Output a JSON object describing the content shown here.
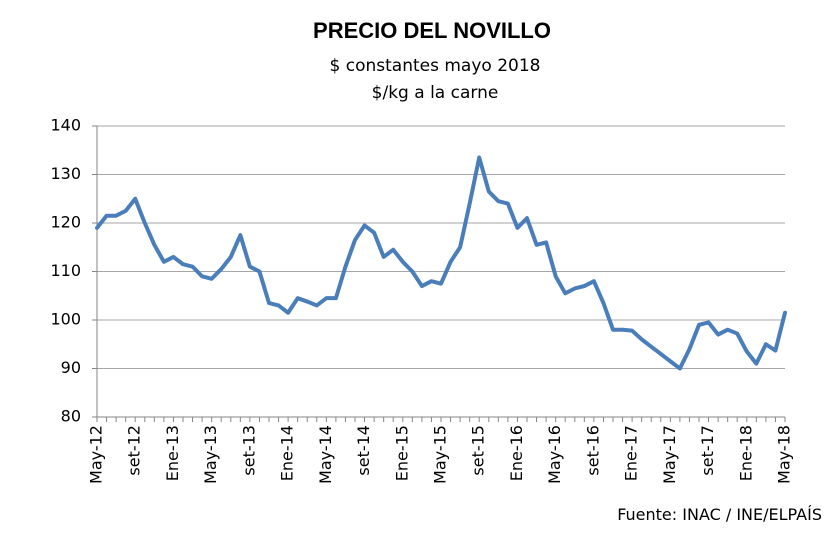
{
  "chart_data": {
    "type": "line",
    "title": "PRECIO DEL NOVILLO",
    "subtitle": "$ constantes mayo 2018",
    "y_axis_label": "$/kg a la carne",
    "source": "Fuente: INAC / INE/ELPAÍS",
    "categories": [
      "May-12",
      null,
      null,
      null,
      "set-12",
      null,
      null,
      null,
      "Ene-13",
      null,
      null,
      null,
      "May-13",
      null,
      null,
      null,
      "set-13",
      null,
      null,
      null,
      "Ene-14",
      null,
      null,
      null,
      "May-14",
      null,
      null,
      null,
      "set-14",
      null,
      null,
      null,
      "Ene-15",
      null,
      null,
      null,
      "May-15",
      null,
      null,
      null,
      "set-15",
      null,
      null,
      null,
      "Ene-16",
      null,
      null,
      null,
      "May-16",
      null,
      null,
      null,
      "set-16",
      null,
      null,
      null,
      "Ene-17",
      null,
      null,
      null,
      "May-17",
      null,
      null,
      null,
      "set-17",
      null,
      null,
      null,
      "Ene-18",
      null,
      null,
      null,
      "May-18"
    ],
    "series": [
      {
        "name": "Precio del novillo",
        "color": "#4a7ebb",
        "values": [
          119,
          121.5,
          121.5,
          122.5,
          125,
          120,
          115.5,
          112,
          113,
          111.5,
          111,
          109,
          108.5,
          110.5,
          113,
          117.5,
          111,
          110,
          103.5,
          103,
          101.5,
          104.5,
          103.8,
          103,
          104.5,
          104.5,
          111,
          116.5,
          119.5,
          118,
          113,
          114.5,
          112,
          110,
          107,
          108,
          107.5,
          112,
          115,
          124,
          133.5,
          126.5,
          124.5,
          124,
          119,
          121,
          115.5,
          116,
          109,
          105.5,
          106.5,
          107,
          108,
          103.5,
          98,
          98,
          97.8,
          96,
          94.5,
          93,
          91.5,
          90,
          94,
          99,
          99.5,
          97,
          98,
          97.2,
          93.5,
          91,
          95,
          93.7,
          101.5
        ]
      }
    ],
    "ylim": [
      80,
      140
    ],
    "yticks": [
      80,
      90,
      100,
      110,
      120,
      130,
      140
    ],
    "grid": true
  }
}
